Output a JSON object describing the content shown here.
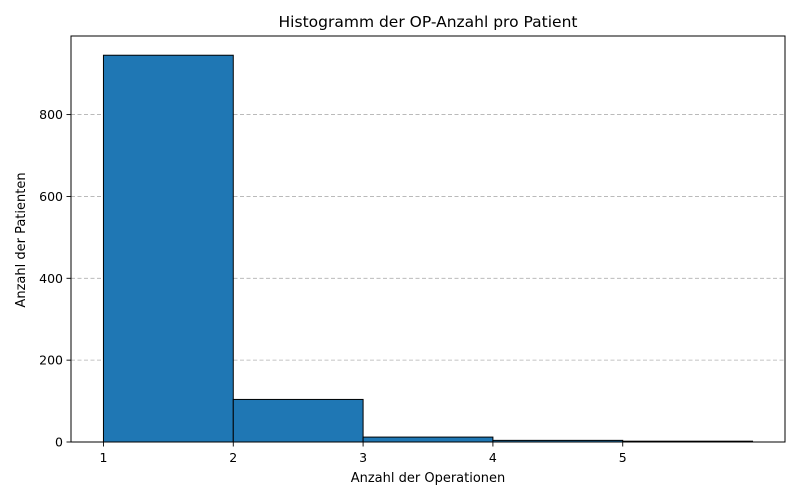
{
  "chart_data": {
    "type": "bar",
    "title": "Histogramm der OP-Anzahl pro Patient",
    "xlabel": "Anzahl der Operationen",
    "ylabel": "Anzahl der Patienten",
    "bins": [
      {
        "start": 1,
        "end": 2,
        "value": 945
      },
      {
        "start": 2,
        "end": 3,
        "value": 104
      },
      {
        "start": 3,
        "end": 4,
        "value": 12
      },
      {
        "start": 4,
        "end": 5,
        "value": 4
      },
      {
        "start": 5,
        "end": 6,
        "value": 2
      }
    ],
    "xlim": [
      0.75,
      6.25
    ],
    "ylim": [
      0,
      992
    ],
    "xticks": [
      1,
      2,
      3,
      4,
      5
    ],
    "yticks": [
      0,
      200,
      400,
      600,
      800
    ],
    "grid": {
      "axis": "y",
      "style": "dashed",
      "color": "#b0b0b0"
    },
    "bar_color": "#1f77b4",
    "edge_color": "#000000"
  }
}
